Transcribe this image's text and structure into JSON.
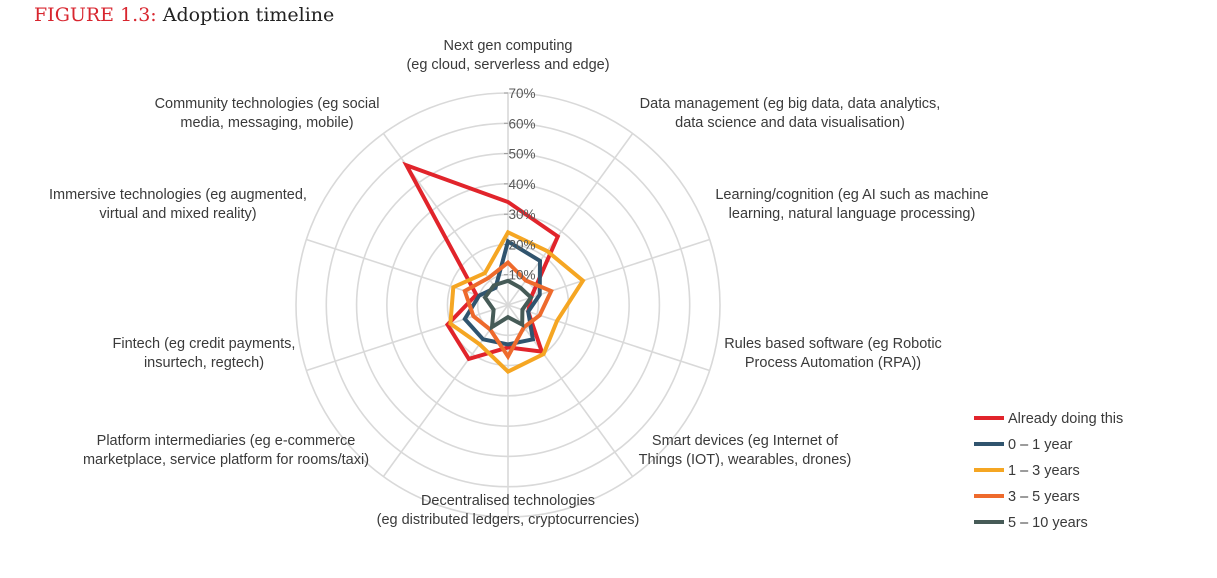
{
  "figure": {
    "label": "FIGURE 1.3:",
    "title": "Adoption timeline"
  },
  "colors": {
    "grid": "#d9d9d9",
    "accent_title": "#d8262f"
  },
  "chart_data": {
    "type": "radar",
    "categories": [
      [
        "Next gen computing",
        "(eg cloud, serverless and edge)"
      ],
      [
        "Data management (eg big data, data analytics,",
        "data science and data visualisation)"
      ],
      [
        "Learning/cognition (eg AI such as machine",
        "learning, natural language processing)"
      ],
      [
        "Rules based software (eg Robotic",
        "Process Automation (RPA))"
      ],
      [
        "Smart devices (eg Internet of",
        "Things (IOT), wearables, drones)"
      ],
      [
        "Decentralised technologies",
        "(eg distributed ledgers, cryptocurrencies)"
      ],
      [
        "Platform intermediaries (eg e-commerce",
        "marketplace, service platform for rooms/taxi)"
      ],
      [
        "Fintech (eg credit payments,",
        "insurtech, regtech)"
      ],
      [
        "Immersive technologies (eg augmented,",
        "virtual and mixed reality)"
      ],
      [
        "Community technologies (eg social",
        "media, messaging, mobile)"
      ]
    ],
    "axis": {
      "min": 0,
      "max": 70,
      "step": 10,
      "tick_labels": [
        "10%",
        "20%",
        "30%",
        "40%",
        "50%",
        "60%",
        "70%"
      ]
    },
    "series": [
      {
        "name": "Already doing this",
        "color": "#e1242b",
        "values": [
          34,
          28,
          8,
          7,
          19,
          14,
          22,
          21,
          11,
          57
        ]
      },
      {
        "name": "0 – 1 year",
        "color": "#30546e",
        "values": [
          21,
          18,
          11,
          7,
          14,
          13,
          14,
          15,
          10,
          7
        ]
      },
      {
        "name": "1 – 3 years",
        "color": "#f5a623",
        "values": [
          24,
          22,
          26,
          17,
          20,
          22,
          16,
          20,
          19,
          13
        ]
      },
      {
        "name": "3 – 5 years",
        "color": "#ee6a2c",
        "values": [
          14,
          10,
          15,
          11,
          9,
          17,
          10,
          12,
          15,
          11
        ]
      },
      {
        "name": "5 – 10 years",
        "color": "#465b57",
        "values": [
          8,
          7,
          8,
          5,
          8,
          4,
          9,
          5,
          8,
          8
        ]
      }
    ],
    "legend_position": "bottom-right",
    "grid": true
  }
}
